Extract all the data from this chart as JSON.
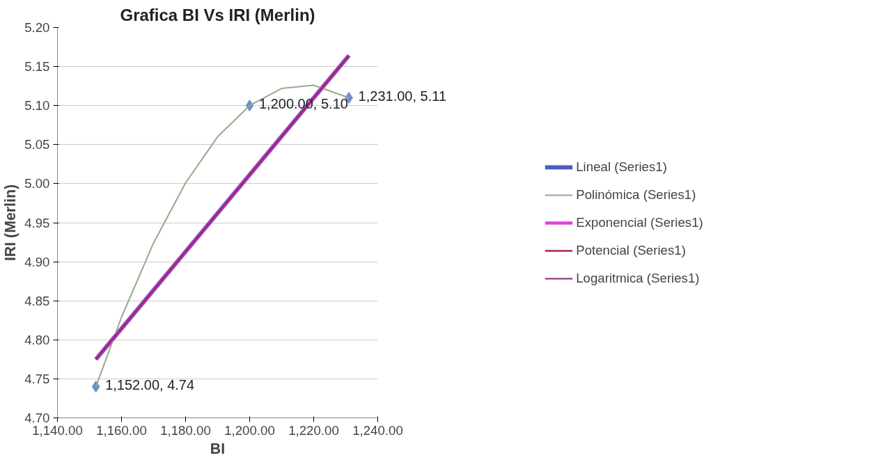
{
  "chart_data": {
    "type": "scatter",
    "title": "Grafica BI Vs IRI (Merlin)",
    "xlabel": "BI",
    "ylabel": "IRI (Merlin)",
    "xlim": [
      1140,
      1240
    ],
    "ylim": [
      4.7,
      5.2
    ],
    "xticks": [
      {
        "value": 1140,
        "label": "1,140.00"
      },
      {
        "value": 1160,
        "label": "1,160.00"
      },
      {
        "value": 1180,
        "label": "1,180.00"
      },
      {
        "value": 1200,
        "label": "1,200.00"
      },
      {
        "value": 1220,
        "label": "1,220.00"
      },
      {
        "value": 1240,
        "label": "1,240.00"
      }
    ],
    "yticks": [
      {
        "value": 4.7,
        "label": "4.70"
      },
      {
        "value": 4.75,
        "label": "4.75"
      },
      {
        "value": 4.8,
        "label": "4.80"
      },
      {
        "value": 4.85,
        "label": "4.85"
      },
      {
        "value": 4.9,
        "label": "4.90"
      },
      {
        "value": 4.95,
        "label": "4.95"
      },
      {
        "value": 5.0,
        "label": "5.00"
      },
      {
        "value": 5.05,
        "label": "5.05"
      },
      {
        "value": 5.1,
        "label": "5.10"
      },
      {
        "value": 5.15,
        "label": "5.15"
      },
      {
        "value": 5.2,
        "label": "5.20"
      }
    ],
    "grid": "y",
    "legend": "right",
    "series": [
      {
        "color": "#6b8fd6",
        "marker": "diamond",
        "x": [
          1152,
          1200,
          1231
        ],
        "values": [
          4.74,
          5.1,
          5.11
        ],
        "value_labels": [
          "1,152.00, 4.74",
          "1,200.00, 5.10",
          "1,231.00, 5.11"
        ]
      },
      {
        "type": "line",
        "name": "Lineal (Series1)",
        "color": "#4a5cc0",
        "x": [
          1152,
          1231
        ],
        "values": [
          4.775,
          5.164
        ]
      },
      {
        "type": "line",
        "name": "Polinómica (Series1)",
        "color": "#9aa88a",
        "x": [
          1152,
          1160,
          1170,
          1180,
          1190,
          1200,
          1210,
          1220,
          1231
        ],
        "values": [
          4.74,
          4.829,
          4.924,
          5.001,
          5.06,
          5.1,
          5.122,
          5.126,
          5.11
        ]
      },
      {
        "type": "line",
        "name": "Exponencial (Series1)",
        "color": "#e040e0",
        "x": [
          1152,
          1231
        ],
        "values": [
          4.775,
          5.164
        ]
      },
      {
        "type": "line",
        "name": "Potencial (Series1)",
        "color": "#c0406a",
        "x": [
          1152,
          1231
        ],
        "values": [
          4.775,
          5.164
        ]
      },
      {
        "type": "line",
        "name": "Logaritmica (Series1)",
        "color": "#8a208a",
        "x": [
          1152,
          1231
        ],
        "values": [
          4.775,
          5.164
        ]
      }
    ]
  }
}
